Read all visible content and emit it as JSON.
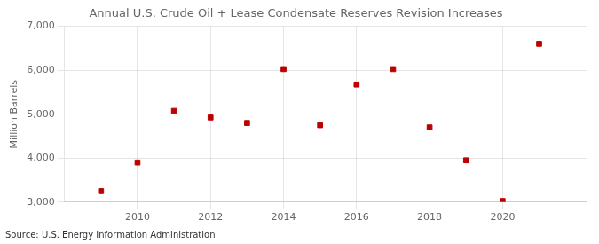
{
  "chart_data": {
    "type": "scatter",
    "title": "Annual U.S. Crude Oil + Lease Condensate Reserves Revision Increases",
    "y_label": "Million Barrels",
    "annotations": [
      "Source: U.S. Energy Information Administration"
    ],
    "x": [
      2009,
      2010,
      2011,
      2012,
      2013,
      2014,
      2015,
      2016,
      2017,
      2018,
      2019,
      2020,
      2021
    ],
    "values": [
      3250,
      3900,
      5075,
      4925,
      4800,
      6025,
      4750,
      5675,
      6025,
      4700,
      3950,
      3025,
      6600
    ],
    "color": "#bb0000",
    "marker": "square",
    "xlim": [
      2008.0,
      2022.3
    ],
    "xticks": [
      2010,
      2012,
      2014,
      2016,
      2018,
      2020
    ],
    "ylim": [
      3000,
      7000
    ],
    "yticks": [
      {
        "value": 3000,
        "label": "3,000"
      },
      {
        "value": 4000,
        "label": "4,000"
      },
      {
        "value": 5000,
        "label": "5,000"
      },
      {
        "value": 6000,
        "label": "6,000"
      },
      {
        "value": 7000,
        "label": "7,000"
      }
    ],
    "grid": true,
    "legend": false
  }
}
